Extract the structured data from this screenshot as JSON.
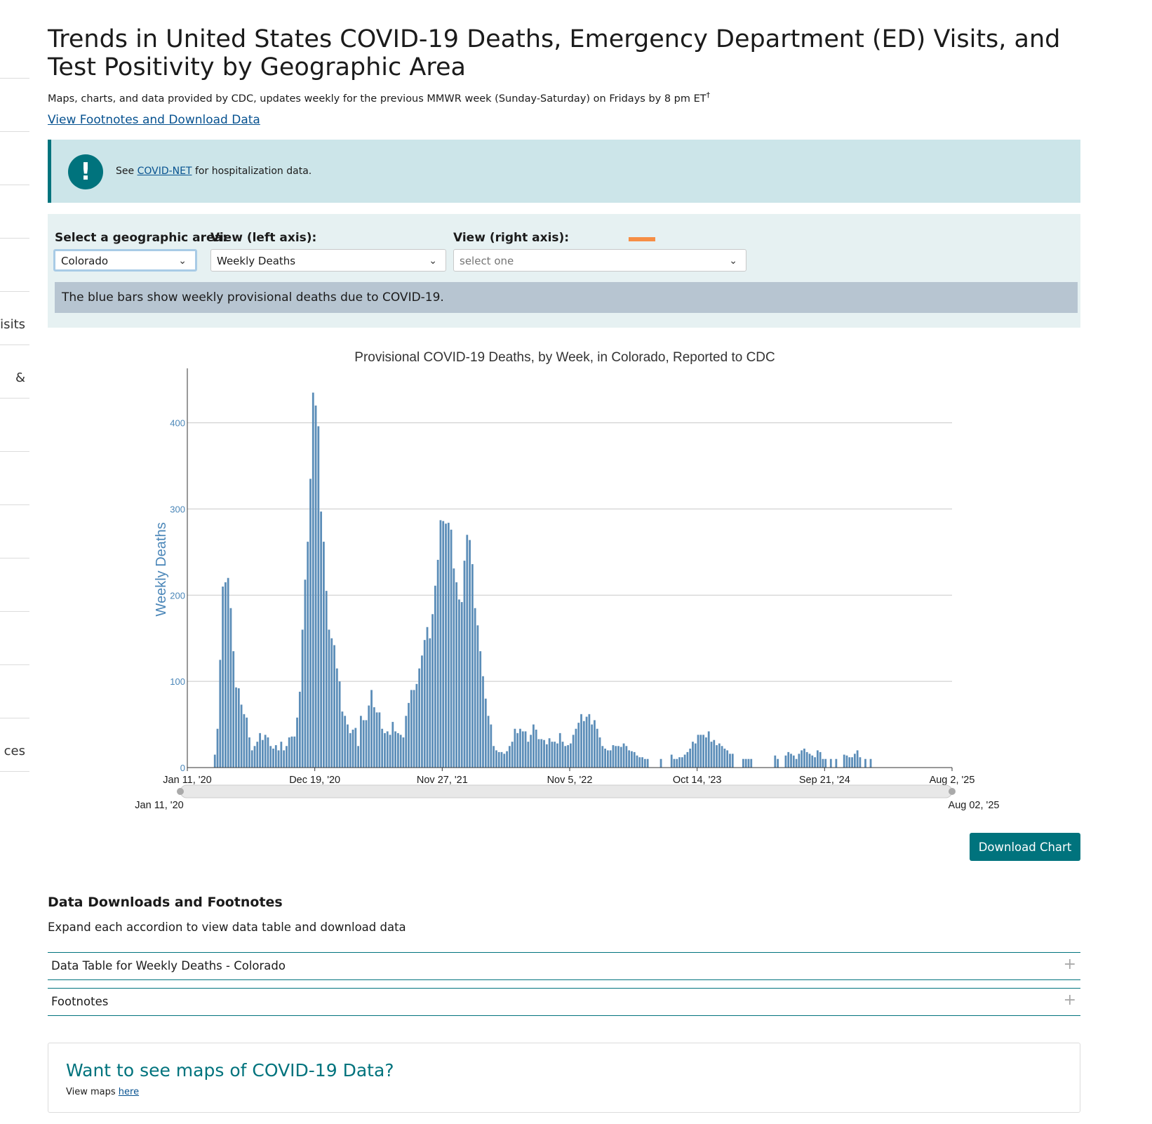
{
  "sidebar": {
    "items": [
      "",
      "",
      "",
      "",
      "",
      "Visits",
      "&",
      "",
      "",
      "",
      "",
      "",
      "",
      "ces"
    ]
  },
  "page": {
    "title": "Trends in United States COVID-19 Deaths, Emergency Department (ED) Visits, and Test Positivity by Geographic Area",
    "subtitle": "Maps, charts, and data provided by CDC, updates weekly for the previous MMWR week (Sunday-Saturday) on Fridays by 8 pm ET",
    "subtitle_mark": "†",
    "footnote_link": "View Footnotes and Download Data"
  },
  "alert": {
    "icon": "exclamation-icon",
    "prefix": "See",
    "link": "COVID-NET",
    "suffix": "for hospitalization data."
  },
  "controls": {
    "geo_label": "Select a geographic area:",
    "geo_value": "Colorado",
    "left_label": "View (left axis):",
    "left_value": "Weekly Deaths",
    "right_label": "View (right axis):",
    "right_placeholder": "select one",
    "right_color": "#f68e45",
    "description": "The blue bars show weekly provisional deaths due to COVID-19."
  },
  "chart_data": {
    "type": "bar",
    "title": "Provisional COVID-19 Deaths, by Week, in Colorado, Reported to CDC",
    "ylabel": "Weekly Deaths",
    "ylim": [
      0,
      455
    ],
    "yticks": [
      0,
      100,
      200,
      300,
      400
    ],
    "x_start": "Jan 11, '20",
    "x_end": "Aug 2, '25",
    "xticks": [
      "Jan 11, '20",
      "Dec 19, '20",
      "Nov 27, '21",
      "Nov 5, '22",
      "Oct 14, '23",
      "Sep 21, '24",
      "Aug 2, '25"
    ],
    "range_start": "Jan 11, '20",
    "range_end": "Aug 02, '25",
    "bar_color": "#5b8db8",
    "grid": true,
    "values": [
      0,
      0,
      0,
      0,
      0,
      0,
      0,
      0,
      0,
      0,
      15,
      45,
      125,
      210,
      215,
      220,
      185,
      135,
      93,
      92,
      73,
      62,
      58,
      35,
      20,
      25,
      30,
      40,
      32,
      38,
      35,
      25,
      22,
      26,
      20,
      30,
      20,
      25,
      35,
      36,
      36,
      58,
      88,
      160,
      218,
      262,
      335,
      435,
      420,
      396,
      297,
      262,
      205,
      160,
      150,
      142,
      115,
      100,
      65,
      60,
      50,
      40,
      44,
      46,
      25,
      60,
      55,
      55,
      72,
      90,
      70,
      64,
      64,
      45,
      40,
      42,
      38,
      53,
      42,
      40,
      38,
      35,
      60,
      75,
      90,
      90,
      97,
      115,
      130,
      148,
      163,
      150,
      178,
      211,
      241,
      287,
      286,
      283,
      284,
      276,
      231,
      215,
      195,
      192,
      240,
      270,
      264,
      236,
      185,
      165,
      135,
      106,
      80,
      60,
      50,
      25,
      20,
      18,
      18,
      16,
      19,
      25,
      30,
      45,
      40,
      45,
      42,
      42,
      30,
      38,
      50,
      44,
      33,
      33,
      32,
      27,
      34,
      30,
      30,
      28,
      40,
      30,
      25,
      26,
      28,
      38,
      45,
      52,
      62,
      54,
      59,
      62,
      50,
      55,
      45,
      35,
      25,
      22,
      20,
      20,
      26,
      25,
      25,
      24,
      28,
      25,
      20,
      19,
      18,
      14,
      12,
      12,
      10,
      10,
      0,
      0,
      0,
      0,
      10,
      0,
      0,
      0,
      15,
      10,
      10,
      12,
      12,
      15,
      18,
      22,
      30,
      28,
      38,
      38,
      38,
      35,
      42,
      30,
      32,
      26,
      28,
      25,
      22,
      20,
      16,
      16,
      0,
      0,
      0,
      10,
      10,
      10,
      10,
      0,
      0,
      0,
      0,
      0,
      0,
      0,
      0,
      14,
      10,
      0,
      0,
      14,
      18,
      16,
      14,
      10,
      16,
      20,
      22,
      18,
      16,
      14,
      12,
      20,
      18,
      10,
      10,
      0,
      10,
      0,
      10,
      0,
      0,
      15,
      14,
      12,
      12,
      16,
      20,
      12,
      0,
      10,
      0,
      10,
      0,
      0,
      0,
      0,
      0,
      0,
      0,
      0,
      0,
      0,
      0,
      0,
      0,
      0,
      0,
      0,
      0,
      0,
      0,
      0,
      0,
      0,
      0,
      0,
      0,
      0,
      0,
      0,
      0,
      0
    ]
  },
  "download_button": "Download Chart",
  "downloads": {
    "title": "Data Downloads and Footnotes",
    "description": "Expand each accordion to view data table and download data",
    "accordions": [
      "Data Table for Weekly Deaths - Colorado",
      "Footnotes"
    ],
    "expand_icon": "plus-icon"
  },
  "maps_card": {
    "title": "Want to see maps of COVID-19 Data?",
    "prefix": "View maps",
    "link": "here"
  }
}
